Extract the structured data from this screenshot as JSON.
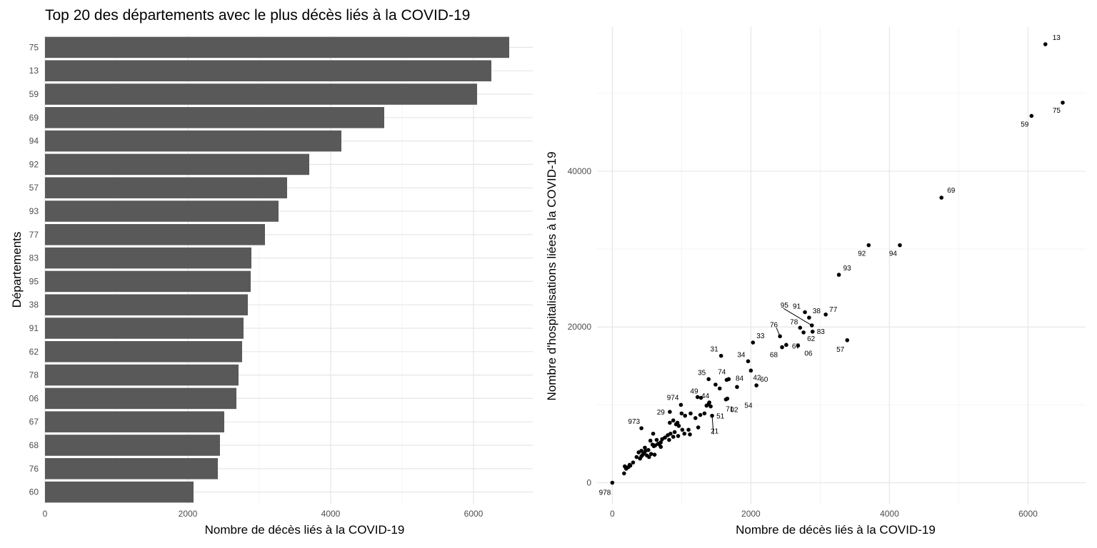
{
  "title": "Top 20 des départements avec le plus décès liés à la COVID-19",
  "chart_data": [
    {
      "type": "bar",
      "orientation": "horizontal",
      "categories": [
        "75",
        "13",
        "59",
        "69",
        "94",
        "92",
        "57",
        "93",
        "77",
        "83",
        "95",
        "38",
        "91",
        "62",
        "78",
        "06",
        "67",
        "68",
        "76",
        "60"
      ],
      "values": [
        6500,
        6250,
        6050,
        4750,
        4150,
        3700,
        3390,
        3270,
        3080,
        2890,
        2880,
        2840,
        2780,
        2760,
        2710,
        2680,
        2510,
        2450,
        2420,
        2080
      ],
      "xlabel": "Nombre de décès liés à la COVID-19",
      "ylabel": "Départements",
      "xlim": [
        0,
        6830
      ],
      "xticks": [
        "0",
        "2000",
        "4000",
        "6000"
      ],
      "grid": true,
      "bar_color": "#595959"
    },
    {
      "type": "scatter",
      "xlabel": "Nombre de décès liés à la COVID-19",
      "ylabel": "Nombre d'hospitalisations liées à la COVID-19",
      "xlim": [
        -220,
        6830
      ],
      "ylim": [
        -2700,
        58500
      ],
      "xticks": [
        "0",
        "2000",
        "4000",
        "6000"
      ],
      "yticks": [
        "0",
        "20000",
        "40000"
      ],
      "grid": true,
      "point_color": "#000000",
      "labeled_points": [
        {
          "label": "13",
          "x": 6250,
          "y": 56300
        },
        {
          "label": "75",
          "x": 6500,
          "y": 48800
        },
        {
          "label": "59",
          "x": 6050,
          "y": 47100
        },
        {
          "label": "69",
          "x": 4750,
          "y": 36600
        },
        {
          "label": "94",
          "x": 4150,
          "y": 30500
        },
        {
          "label": "92",
          "x": 3700,
          "y": 30500
        },
        {
          "label": "93",
          "x": 3270,
          "y": 26700
        },
        {
          "label": "77",
          "x": 3080,
          "y": 21600
        },
        {
          "label": "38",
          "x": 2840,
          "y": 21200
        },
        {
          "label": "91",
          "x": 2780,
          "y": 21900
        },
        {
          "label": "95",
          "x": 2880,
          "y": 20200
        },
        {
          "label": "83",
          "x": 2890,
          "y": 19400
        },
        {
          "label": "78",
          "x": 2710,
          "y": 19900
        },
        {
          "label": "57",
          "x": 3390,
          "y": 18300
        },
        {
          "label": "76",
          "x": 2420,
          "y": 18800
        },
        {
          "label": "67",
          "x": 2510,
          "y": 17700
        },
        {
          "label": "62",
          "x": 2760,
          "y": 19300
        },
        {
          "label": "06",
          "x": 2680,
          "y": 17600
        },
        {
          "label": "68",
          "x": 2450,
          "y": 17400
        },
        {
          "label": "33",
          "x": 2030,
          "y": 18000
        },
        {
          "label": "31",
          "x": 1570,
          "y": 16300
        },
        {
          "label": "34",
          "x": 1960,
          "y": 15600
        },
        {
          "label": "42",
          "x": 2000,
          "y": 14400
        },
        {
          "label": "60",
          "x": 2080,
          "y": 12500
        },
        {
          "label": "84",
          "x": 1800,
          "y": 12300
        },
        {
          "label": "74",
          "x": 1680,
          "y": 13300
        },
        {
          "label": "35",
          "x": 1390,
          "y": 13300
        },
        {
          "label": "54",
          "x": 1660,
          "y": 10800
        },
        {
          "label": "49",
          "x": 1280,
          "y": 10900
        },
        {
          "label": "44",
          "x": 1400,
          "y": 10300
        },
        {
          "label": "974",
          "x": 990,
          "y": 10000
        },
        {
          "label": "71",
          "x": 1390,
          "y": 10100
        },
        {
          "label": "02",
          "x": 1640,
          "y": 10700
        },
        {
          "label": "51",
          "x": 1420,
          "y": 9800
        },
        {
          "label": "29",
          "x": 830,
          "y": 9100
        },
        {
          "label": "21",
          "x": 1440,
          "y": 8600
        },
        {
          "label": "973",
          "x": 420,
          "y": 7000
        },
        {
          "label": "978",
          "x": 0,
          "y": 0
        }
      ],
      "other_points": [
        [
          1490,
          12600
        ],
        [
          1550,
          12100
        ],
        [
          1650,
          13200
        ],
        [
          1230,
          11000
        ],
        [
          1360,
          9900
        ],
        [
          1130,
          8900
        ],
        [
          1050,
          8600
        ],
        [
          1000,
          8900
        ],
        [
          1270,
          8700
        ],
        [
          1330,
          8900
        ],
        [
          1200,
          8300
        ],
        [
          940,
          7700
        ],
        [
          880,
          8000
        ],
        [
          830,
          7700
        ],
        [
          920,
          7500
        ],
        [
          960,
          7300
        ],
        [
          1240,
          7100
        ],
        [
          1100,
          6800
        ],
        [
          1010,
          6800
        ],
        [
          900,
          6500
        ],
        [
          840,
          6300
        ],
        [
          800,
          6100
        ],
        [
          760,
          5800
        ],
        [
          720,
          5600
        ],
        [
          820,
          5500
        ],
        [
          880,
          5900
        ],
        [
          950,
          6000
        ],
        [
          1040,
          6300
        ],
        [
          1120,
          6200
        ],
        [
          700,
          5200
        ],
        [
          660,
          5000
        ],
        [
          620,
          4800
        ],
        [
          580,
          4900
        ],
        [
          550,
          5400
        ],
        [
          590,
          6300
        ],
        [
          640,
          5500
        ],
        [
          600,
          4700
        ],
        [
          680,
          4900
        ],
        [
          700,
          4600
        ],
        [
          520,
          4200
        ],
        [
          480,
          4100
        ],
        [
          460,
          3800
        ],
        [
          440,
          3600
        ],
        [
          420,
          3400
        ],
        [
          500,
          3500
        ],
        [
          530,
          3300
        ],
        [
          560,
          3700
        ],
        [
          610,
          3600
        ],
        [
          470,
          4500
        ],
        [
          420,
          4100
        ],
        [
          380,
          3900
        ],
        [
          400,
          3100
        ],
        [
          350,
          3300
        ],
        [
          300,
          2600
        ],
        [
          260,
          2200
        ],
        [
          230,
          2000
        ],
        [
          200,
          1800
        ],
        [
          170,
          1200
        ],
        [
          180,
          2100
        ],
        [
          250,
          2300
        ]
      ]
    }
  ]
}
